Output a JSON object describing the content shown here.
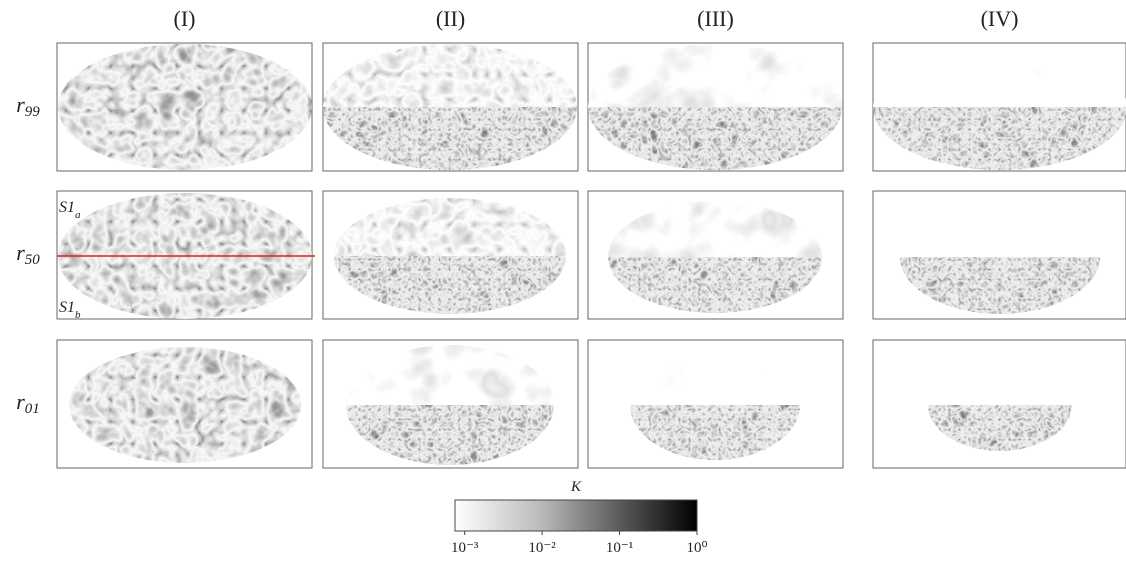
{
  "columns": [
    "(I)",
    "(II)",
    "(III)",
    "(IV)"
  ],
  "rows": [
    {
      "base": "r",
      "sub": "99"
    },
    {
      "base": "r",
      "sub": "50"
    },
    {
      "base": "r",
      "sub": "01"
    }
  ],
  "annotations": [
    {
      "base": "S1",
      "sub": "a"
    },
    {
      "base": "S1",
      "sub": "b"
    }
  ],
  "colorbar": {
    "label": "K",
    "scale": "log",
    "lim": [
      0.00075,
      1
    ],
    "ticks": [
      {
        "value": 0.001,
        "label": "10⁻³"
      },
      {
        "value": 0.01,
        "label": "10⁻²"
      },
      {
        "value": 0.1,
        "label": "10⁻¹"
      },
      {
        "value": 1,
        "label": "10⁰"
      }
    ]
  }
}
